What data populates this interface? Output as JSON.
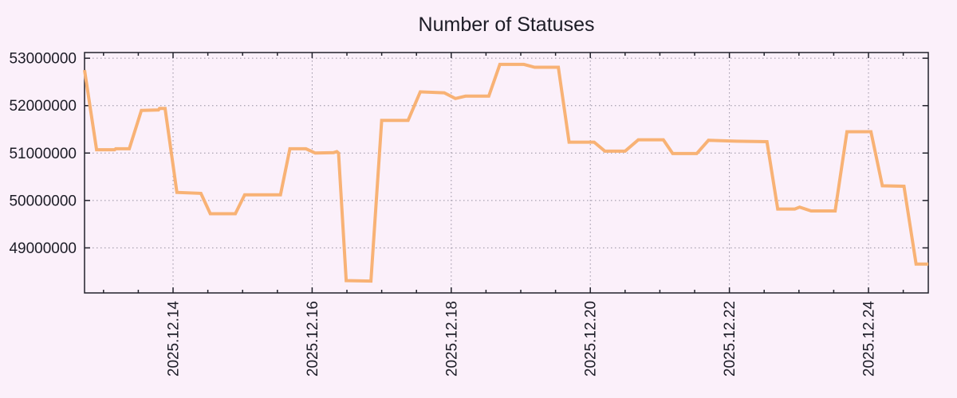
{
  "colors": {
    "background": "#fbf0fa",
    "axis_border": "#21212b",
    "grid": "#958fa0",
    "text": "#1c1c26",
    "line": "#f8b275"
  },
  "chart_data": {
    "type": "line",
    "title": "Number of Statuses",
    "xlabel": "",
    "ylabel": "",
    "legend": {
      "show": false
    },
    "grid": {
      "show": true,
      "style": "dotted"
    },
    "x_axis": {
      "unit": "days, t=2 corresponds to 2025.12.14 and each major gridline step is 2 days",
      "range": [
        0.727,
        12.86
      ],
      "minor_tick_interval": 0.5,
      "major_ticks": [
        {
          "t": 2,
          "label": "2025.12.14"
        },
        {
          "t": 4,
          "label": "2025.12.16"
        },
        {
          "t": 6,
          "label": "2025.12.18"
        },
        {
          "t": 8,
          "label": "2025.12.20"
        },
        {
          "t": 10,
          "label": "2025.12.22"
        },
        {
          "t": 12,
          "label": "2025.12.24"
        }
      ]
    },
    "y_axis": {
      "range": [
        48050000,
        53120000
      ],
      "major_ticks": [
        {
          "v": 49000000,
          "label": "49000000"
        },
        {
          "v": 50000000,
          "label": "50000000"
        },
        {
          "v": 51000000,
          "label": "51000000"
        },
        {
          "v": 52000000,
          "label": "52000000"
        },
        {
          "v": 53000000,
          "label": "53000000"
        }
      ]
    },
    "series": [
      {
        "name": "statuses",
        "color": "#f8b275",
        "points": [
          [
            0.727,
            52750000
          ],
          [
            0.9,
            51070000
          ],
          [
            1.16,
            51070000
          ],
          [
            1.175,
            51090000
          ],
          [
            1.37,
            51090000
          ],
          [
            1.545,
            51900000
          ],
          [
            1.79,
            51910000
          ],
          [
            1.805,
            51940000
          ],
          [
            1.885,
            51940000
          ],
          [
            2.055,
            50170000
          ],
          [
            2.4,
            50150000
          ],
          [
            2.535,
            49720000
          ],
          [
            2.895,
            49720000
          ],
          [
            3.03,
            50120000
          ],
          [
            3.545,
            50120000
          ],
          [
            3.68,
            51090000
          ],
          [
            3.91,
            51090000
          ],
          [
            4.045,
            51000000
          ],
          [
            4.31,
            51010000
          ],
          [
            4.355,
            51030000
          ],
          [
            4.38,
            51000000
          ],
          [
            4.49,
            48310000
          ],
          [
            4.845,
            48300000
          ],
          [
            5.0,
            51690000
          ],
          [
            5.38,
            51690000
          ],
          [
            5.555,
            52290000
          ],
          [
            5.9,
            52270000
          ],
          [
            6.06,
            52150000
          ],
          [
            6.205,
            52200000
          ],
          [
            6.54,
            52200000
          ],
          [
            6.7,
            52870000
          ],
          [
            7.045,
            52870000
          ],
          [
            7.2,
            52810000
          ],
          [
            7.54,
            52810000
          ],
          [
            7.695,
            51230000
          ],
          [
            8.055,
            51230000
          ],
          [
            8.21,
            51040000
          ],
          [
            8.5,
            51040000
          ],
          [
            8.69,
            51280000
          ],
          [
            9.05,
            51280000
          ],
          [
            9.185,
            50990000
          ],
          [
            9.53,
            50990000
          ],
          [
            9.7,
            51270000
          ],
          [
            10.1,
            51250000
          ],
          [
            10.54,
            51240000
          ],
          [
            10.695,
            49820000
          ],
          [
            10.94,
            49820000
          ],
          [
            11.01,
            49860000
          ],
          [
            11.175,
            49780000
          ],
          [
            11.52,
            49780000
          ],
          [
            11.69,
            51450000
          ],
          [
            12.035,
            51450000
          ],
          [
            12.2,
            50310000
          ],
          [
            12.51,
            50300000
          ],
          [
            12.685,
            48660000
          ],
          [
            12.86,
            48660000
          ]
        ]
      }
    ]
  }
}
